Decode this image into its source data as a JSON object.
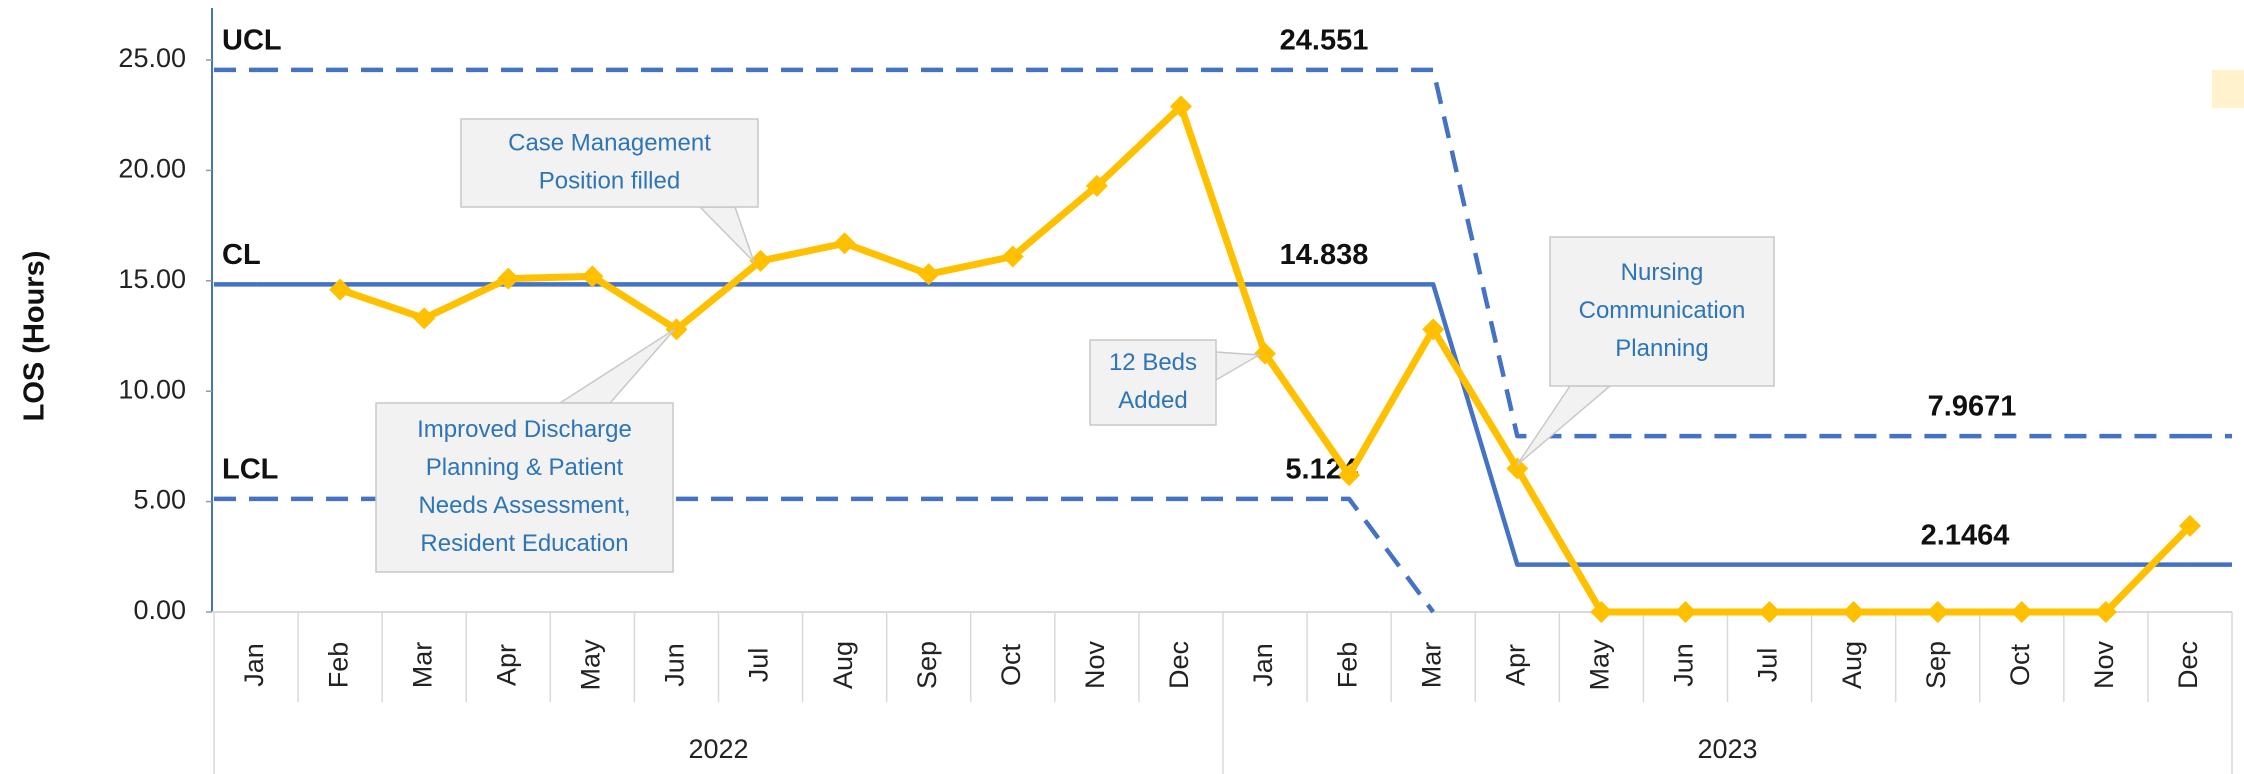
{
  "chart_data": {
    "type": "line",
    "y_label": "LOS (Hours)",
    "categories": [
      "Jan",
      "Feb",
      "Mar",
      "Apr",
      "May",
      "Jun",
      "Jul",
      "Aug",
      "Sep",
      "Oct",
      "Nov",
      "Dec",
      "Jan",
      "Feb",
      "Mar",
      "Apr",
      "May",
      "Jun",
      "Jul",
      "Aug",
      "Sep",
      "Oct",
      "Nov",
      "Dec"
    ],
    "category_groups": [
      {
        "label": "2022",
        "count": 12
      },
      {
        "label": "2023",
        "count": 12
      }
    ],
    "ylim": [
      0,
      25
    ],
    "yticks": [
      {
        "value": 0,
        "label": "0.00"
      },
      {
        "value": 5,
        "label": "5.00"
      },
      {
        "value": 10,
        "label": "10.00"
      },
      {
        "value": 15,
        "label": "15.00"
      },
      {
        "value": 20,
        "label": "20.00"
      },
      {
        "value": 25,
        "label": "25.00"
      }
    ],
    "series": [
      {
        "color": "#FFC000",
        "values": [
          null,
          14.6,
          13.3,
          15.1,
          15.2,
          12.8,
          15.9,
          16.7,
          15.3,
          16.1,
          19.3,
          22.9,
          11.7,
          6.2,
          12.8,
          6.5,
          0,
          0,
          0,
          0,
          0,
          0,
          0,
          3.9
        ]
      },
      {
        "name": "UCL",
        "color": "#4472C4",
        "dash": true,
        "values": [
          24.551,
          24.551,
          24.551,
          24.551,
          24.551,
          24.551,
          24.551,
          24.551,
          24.551,
          24.551,
          24.551,
          24.551,
          24.551,
          24.551,
          24.551,
          7.9671,
          7.9671,
          7.9671,
          7.9671,
          7.9671,
          7.9671,
          7.9671,
          7.9671,
          7.9671
        ]
      },
      {
        "name": "CL",
        "color": "#4472C4",
        "dash": false,
        "values": [
          14.838,
          14.838,
          14.838,
          14.838,
          14.838,
          14.838,
          14.838,
          14.838,
          14.838,
          14.838,
          14.838,
          14.838,
          14.838,
          14.838,
          14.838,
          2.1464,
          2.1464,
          2.1464,
          2.1464,
          2.1464,
          2.1464,
          2.1464,
          2.1464,
          2.1464
        ]
      },
      {
        "name": "LCL",
        "color": "#4472C4",
        "dash": true,
        "values": [
          5.124,
          5.124,
          5.124,
          5.124,
          5.124,
          5.124,
          5.124,
          5.124,
          5.124,
          5.124,
          5.124,
          5.124,
          5.124,
          5.124,
          0,
          null,
          null,
          null,
          null,
          null,
          null,
          null,
          null,
          null
        ]
      }
    ],
    "annotations": [
      {
        "lines": [
          "Case Management",
          "Position filled"
        ]
      },
      {
        "lines": [
          "Improved Discharge",
          "Planning & Patient",
          "Needs Assessment,",
          "Resident Education"
        ]
      },
      {
        "lines": [
          "12 Beds",
          "Added"
        ]
      },
      {
        "lines": [
          "Nursing",
          "Communication",
          "Planning"
        ]
      }
    ]
  }
}
